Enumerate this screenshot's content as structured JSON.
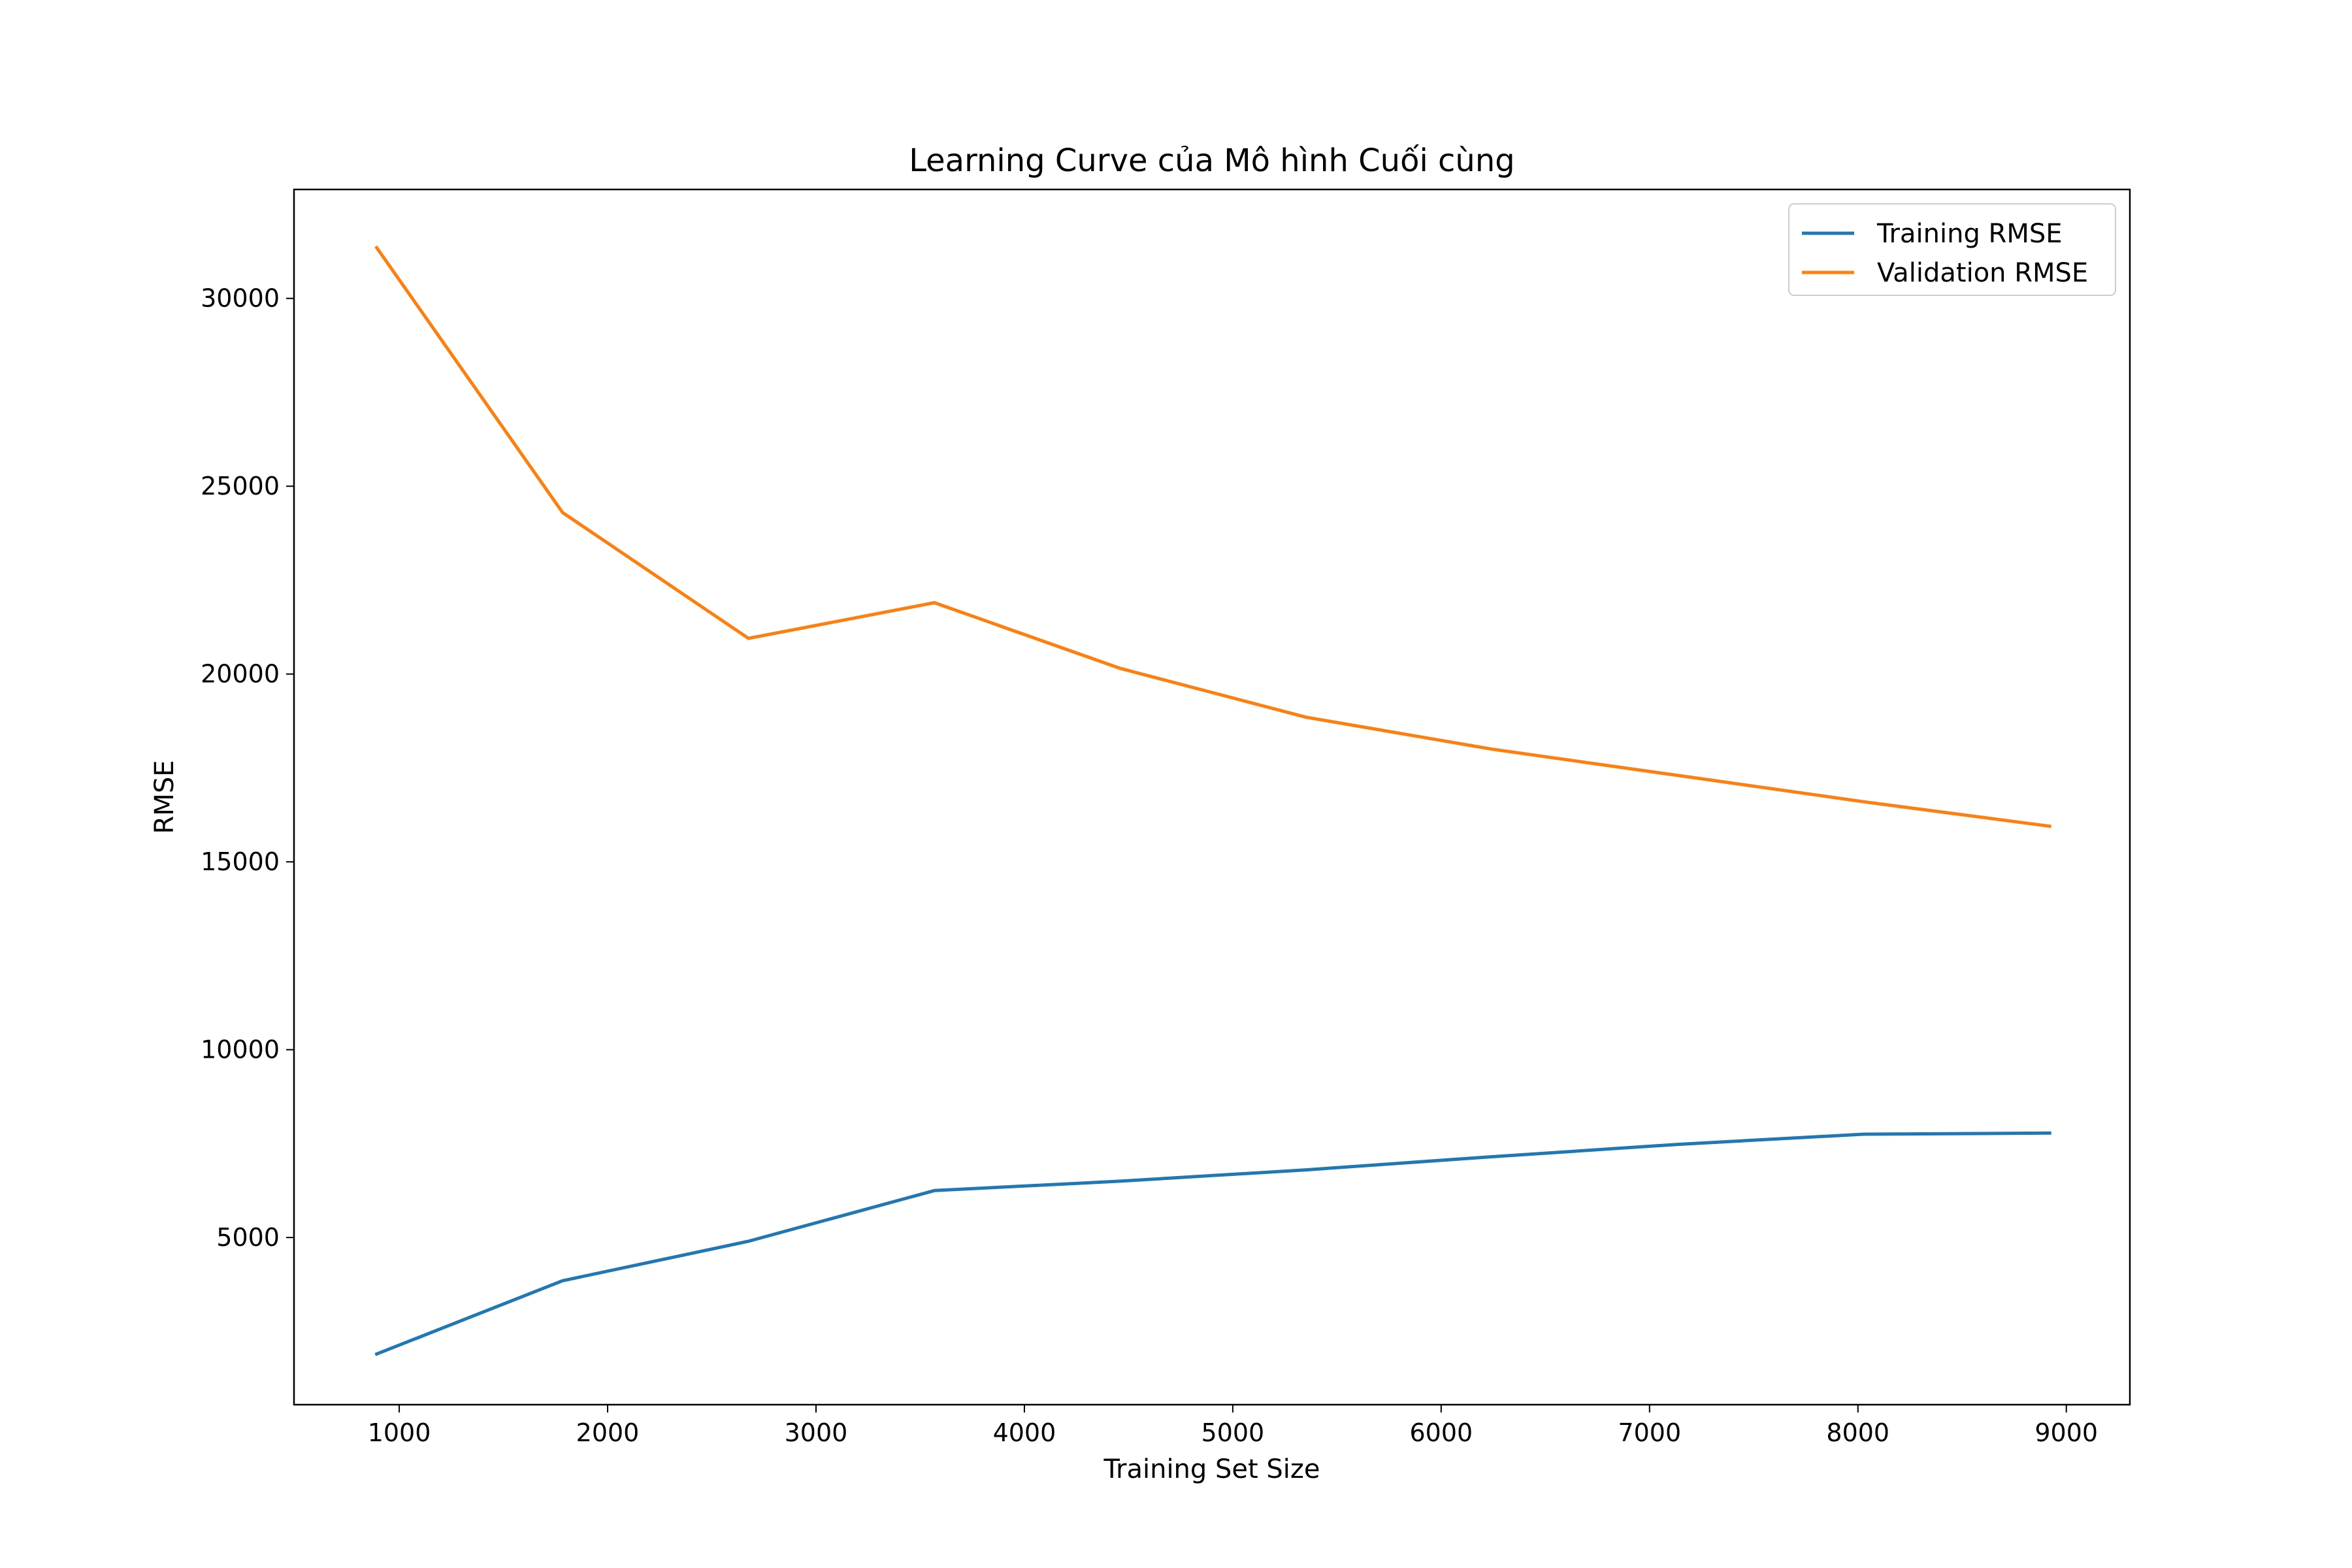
{
  "chart_data": {
    "type": "line",
    "title": "Learning Curve của Mô hình Cuối cùng",
    "xlabel": "Training Set Size",
    "ylabel": "RMSE",
    "xlim": [
      495,
      9305
    ],
    "ylim": [
      550,
      32900
    ],
    "xticks": [
      1000,
      2000,
      3000,
      4000,
      5000,
      6000,
      7000,
      8000,
      9000
    ],
    "yticks": [
      5000,
      10000,
      15000,
      20000,
      25000,
      30000
    ],
    "grid": false,
    "legend": {
      "position": "top-right"
    },
    "x": [
      892,
      1784,
      2676,
      3568,
      4460,
      5352,
      6244,
      7136,
      8028,
      8920
    ],
    "series": [
      {
        "name": "Training RMSE",
        "color": "#1f77b4",
        "values": [
          1900,
          3850,
          4900,
          6250,
          6500,
          6800,
          7150,
          7480,
          7750,
          7780
        ]
      },
      {
        "name": "Validation RMSE",
        "color": "#ff7f0e",
        "values": [
          31350,
          24300,
          20950,
          21900,
          20150,
          18850,
          18000,
          17300,
          16600,
          15950
        ]
      }
    ]
  }
}
